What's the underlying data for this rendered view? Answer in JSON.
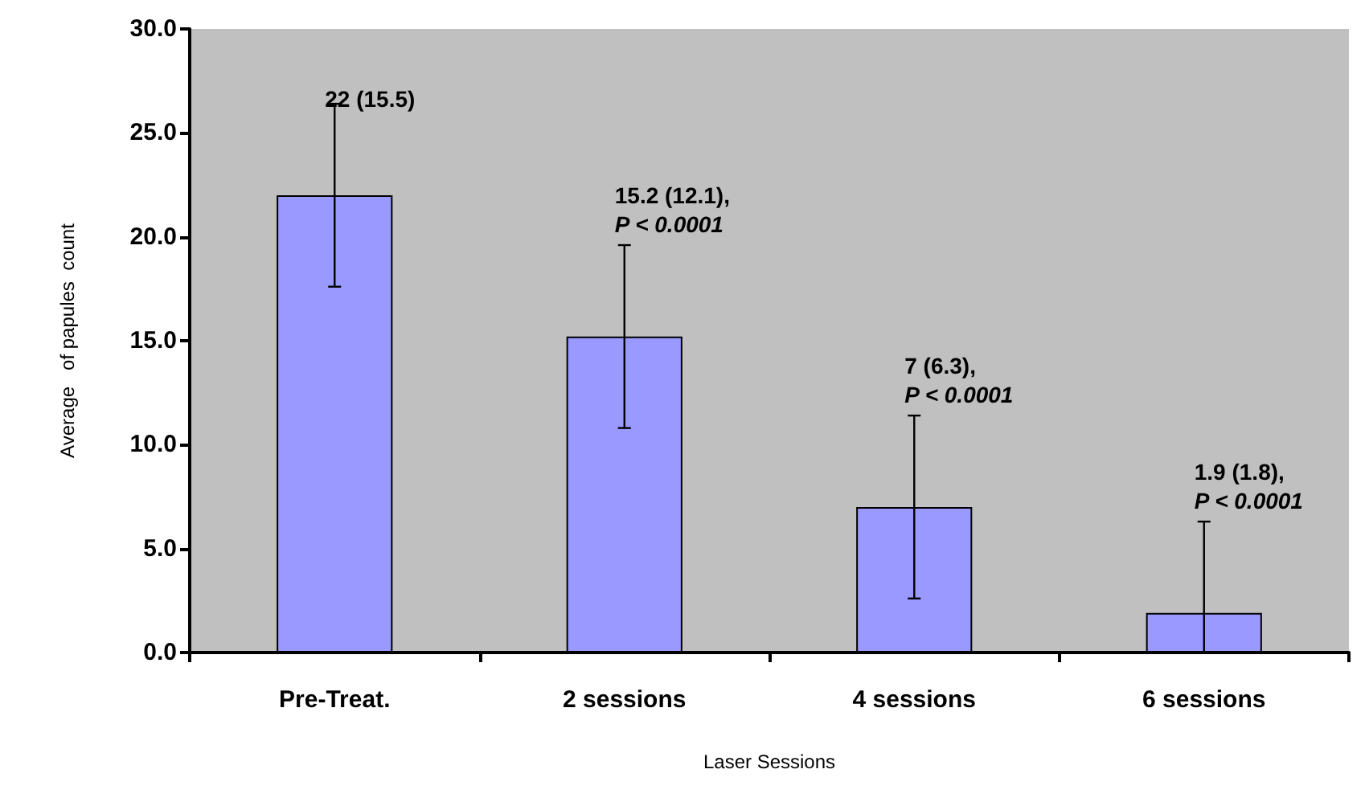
{
  "chart_data": {
    "type": "bar",
    "xlabel": "Laser Sessions",
    "ylabel": "Average   of papules  count",
    "categories": [
      "Pre-Treat.",
      "2 sessions",
      "4 sessions",
      "6 sessions"
    ],
    "values": [
      22,
      15.2,
      7,
      1.9
    ],
    "color": "#9999ff",
    "errors": [
      4.4,
      4.4,
      4.4,
      [
        0,
        6.3
      ]
    ],
    "ylim": [
      0,
      30
    ],
    "yticks": [
      {
        "value": 0,
        "label": "0.0"
      },
      {
        "value": 5,
        "label": "5.0"
      },
      {
        "value": 10,
        "label": "10.0"
      },
      {
        "value": 15,
        "label": "15.0"
      },
      {
        "value": 20,
        "label": "20.0"
      },
      {
        "value": 25,
        "label": "25.0"
      },
      {
        "value": 30,
        "label": "30.0"
      }
    ],
    "annotations": [
      {
        "text": "22 (15.5)",
        "x": "Pre-Treat.",
        "y": 26.4
      },
      {
        "text": "15.2 (12.1),\nP < 0.0001",
        "x": "2 sessions",
        "y": 19.6
      },
      {
        "text": "7 (6.3),\nP < 0.0001",
        "x": "4 sessions",
        "y": 11.4
      },
      {
        "text": "1.9 (1.8),\nP < 0.0001",
        "x": "6 sessions",
        "y": 6.3
      }
    ]
  }
}
